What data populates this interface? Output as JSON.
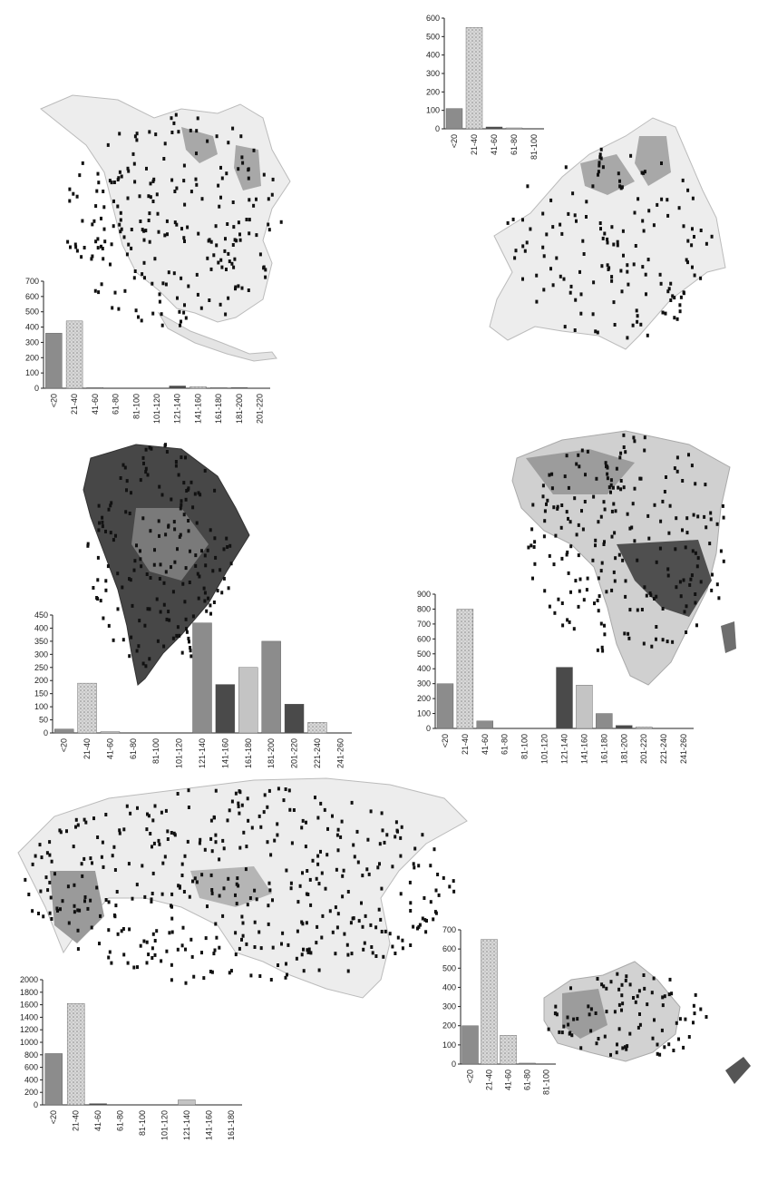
{
  "colors": {
    "dark": "#4a4a4a",
    "mid": "#8c8c8c",
    "light": "#c4c4c4",
    "map_fill": "#9a9a9a",
    "dot": "#111111"
  },
  "chart_data": [
    {
      "type": "bar",
      "panel": "North America",
      "categories": [
        "<20",
        "21-40",
        "41-60",
        "61-80",
        "81-100",
        "101-120",
        "121-140",
        "141-160",
        "161-180",
        "181-200",
        "201-220"
      ],
      "yticks": [
        "0",
        "100",
        "200",
        "300",
        "400",
        "500",
        "600",
        "700"
      ],
      "ylim": [
        0,
        700
      ],
      "series": [
        {
          "values": [
            360,
            440,
            5,
            0,
            0,
            0,
            15,
            10,
            5,
            5,
            0
          ]
        }
      ]
    },
    {
      "type": "bar",
      "panel": "Europe",
      "categories": [
        "<20",
        "21-40",
        "41-60",
        "61-80",
        "81-100"
      ],
      "yticks": [
        "0",
        "100",
        "200",
        "300",
        "400",
        "500",
        "600"
      ],
      "ylim": [
        0,
        600
      ],
      "series": [
        {
          "values": [
            110,
            550,
            10,
            5,
            0
          ]
        }
      ]
    },
    {
      "type": "bar",
      "panel": "South America",
      "categories": [
        "<20",
        "21-40",
        "41-60",
        "61-80",
        "81-100",
        "101-120",
        "121-140",
        "141-160",
        "161-180",
        "181-200",
        "201-220",
        "221-240",
        "241-260"
      ],
      "yticks": [
        "0",
        "50",
        "100",
        "150",
        "200",
        "250",
        "300",
        "350",
        "400",
        "450"
      ],
      "ylim": [
        0,
        450
      ],
      "series": [
        {
          "values": [
            15,
            190,
            5,
            0,
            0,
            0,
            420,
            185,
            250,
            350,
            110,
            40,
            0
          ]
        }
      ]
    },
    {
      "type": "bar",
      "panel": "Africa",
      "categories": [
        "<20",
        "21-40",
        "41-60",
        "61-80",
        "81-100",
        "101-120",
        "121-140",
        "141-160",
        "161-180",
        "181-200",
        "201-220",
        "221-240",
        "241-260"
      ],
      "yticks": [
        "0",
        "100",
        "200",
        "300",
        "400",
        "500",
        "600",
        "700",
        "800",
        "900"
      ],
      "ylim": [
        0,
        900
      ],
      "series": [
        {
          "values": [
            300,
            800,
            50,
            0,
            0,
            0,
            410,
            290,
            100,
            20,
            10,
            0,
            0
          ]
        }
      ]
    },
    {
      "type": "bar",
      "panel": "Asia",
      "categories": [
        "<20",
        "21-40",
        "41-60",
        "61-80",
        "81-100",
        "101-120",
        "121-140",
        "141-160",
        "161-180"
      ],
      "yticks": [
        "0",
        "200",
        "400",
        "600",
        "800",
        "1000",
        "1200",
        "1400",
        "1600",
        "1800",
        "2000"
      ],
      "ylim": [
        0,
        2000
      ],
      "series": [
        {
          "values": [
            820,
            1620,
            20,
            0,
            0,
            0,
            80,
            0,
            0
          ]
        }
      ]
    },
    {
      "type": "bar",
      "panel": "Australia",
      "categories": [
        "<20",
        "21-40",
        "41-60",
        "61-80",
        "81-100"
      ],
      "yticks": [
        "0",
        "100",
        "200",
        "300",
        "400",
        "500",
        "600",
        "700"
      ],
      "ylim": [
        0,
        700
      ],
      "series": [
        {
          "values": [
            200,
            650,
            150,
            5,
            0
          ]
        }
      ]
    }
  ]
}
